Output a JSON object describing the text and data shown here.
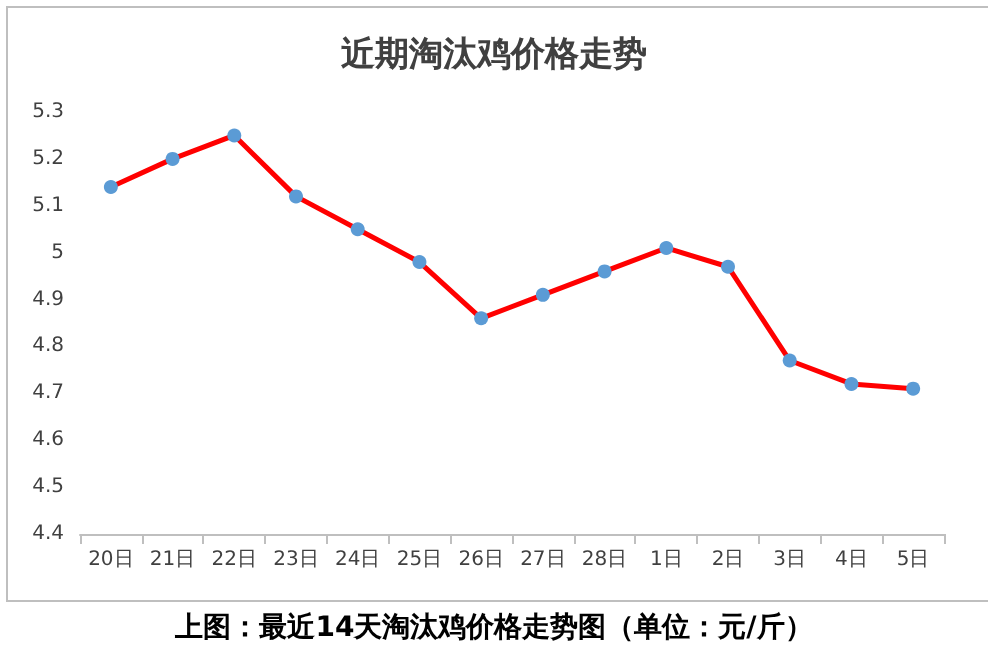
{
  "chart_data": {
    "type": "line",
    "title": "近期淘汰鸡价格走势",
    "categories": [
      "20日",
      "21日",
      "22日",
      "23日",
      "24日",
      "25日",
      "26日",
      "27日",
      "28日",
      "1日",
      "2日",
      "3日",
      "4日",
      "5日"
    ],
    "series": [
      {
        "color": "#ff0000",
        "values": [
          5.14,
          5.2,
          5.25,
          5.12,
          5.05,
          4.98,
          4.86,
          4.91,
          4.96,
          5.01,
          4.97,
          4.77,
          4.72,
          4.71
        ]
      }
    ],
    "ylim": [
      4.4,
      5.3
    ],
    "yticks": [
      4.4,
      4.5,
      4.6,
      4.7,
      4.8,
      4.9,
      5,
      5.1,
      5.2,
      5.3
    ],
    "grid": false,
    "marker": "circle",
    "line_style": "solid",
    "annotations": [
      "上图：最近14天淘汰鸡价格走势图（单位：元/斤）"
    ]
  }
}
